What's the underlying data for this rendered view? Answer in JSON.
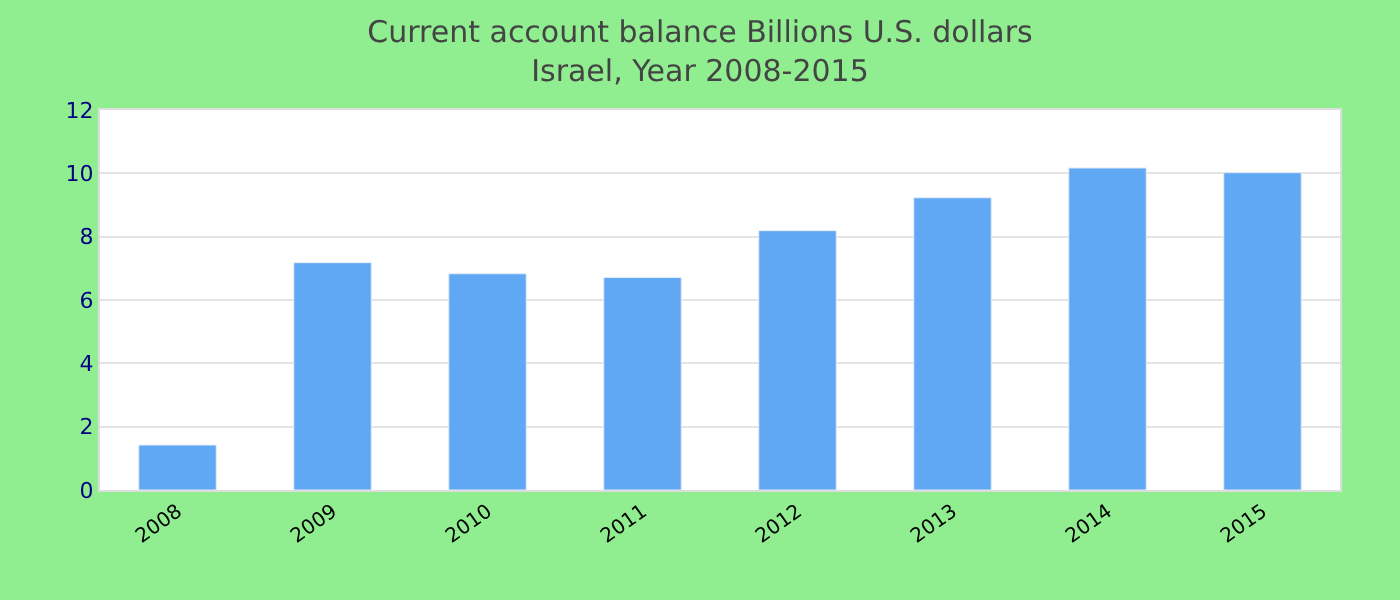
{
  "chart_data": {
    "type": "bar",
    "title": "Current account balance Billions U.S. dollars",
    "subtitle": "Israel, Year 2008-2015",
    "categories": [
      "2008",
      "2009",
      "2010",
      "2011",
      "2012",
      "2013",
      "2014",
      "2015"
    ],
    "values": [
      1.42,
      7.18,
      6.83,
      6.71,
      8.19,
      9.23,
      10.17,
      10.02
    ],
    "color": "#60a8f4",
    "ylim": [
      0,
      12
    ],
    "yticks": [
      0,
      2,
      4,
      6,
      8,
      10,
      12
    ],
    "grid": "y",
    "legend": false
  }
}
